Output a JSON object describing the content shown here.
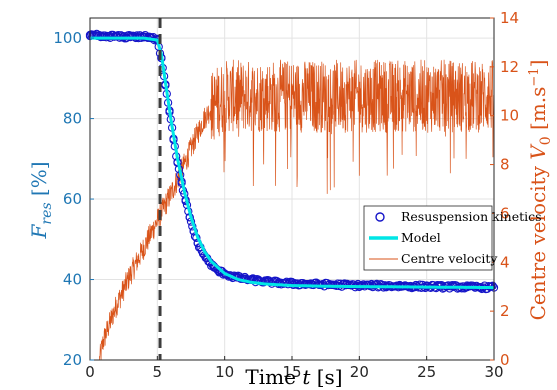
{
  "chart_data": {
    "type": "line",
    "xlabel": "Time t [s]",
    "ylabel_left": "F_res [%]",
    "ylabel_right": "Centre velocity V_0 [m.s^-1]",
    "xlim": [
      0,
      30
    ],
    "ylim_left": [
      20,
      105
    ],
    "ylim_right": [
      0,
      14
    ],
    "x_ticks": [
      "0",
      "5",
      "10",
      "15",
      "20",
      "25",
      "30"
    ],
    "y_left_ticks": [
      "20",
      "40",
      "60",
      "80",
      "100"
    ],
    "y_right_ticks": [
      "0",
      "2",
      "4",
      "6",
      "8",
      "10",
      "12",
      "14"
    ],
    "grid": true,
    "legend_position": "center-right",
    "vline": {
      "x": 5.2,
      "style": "dashed",
      "color": "#3d3d3d"
    },
    "colors": {
      "left_axis": "#1f77b4",
      "right_axis": "#d95319",
      "markers": "#1515c8",
      "model": "#00e6e6",
      "velocity": "#d95319"
    },
    "series": [
      {
        "name": "Resuspension kinetics",
        "axis": "left",
        "style": "markers",
        "x": [
          0.0,
          0.5,
          1.0,
          1.5,
          2.0,
          2.5,
          3.0,
          3.5,
          4.0,
          4.5,
          5.0,
          5.3,
          5.6,
          5.9,
          6.2,
          6.5,
          6.8,
          7.1,
          7.4,
          7.7,
          8.0,
          8.4,
          8.8,
          9.2,
          9.6,
          10.0,
          10.5,
          11.0,
          11.5,
          12.0,
          12.5,
          13.0,
          14.0,
          15.0,
          16.0,
          17.0,
          18.0,
          19.0,
          20.0,
          21.0,
          22.0,
          23.0,
          24.0,
          25.0,
          26.0,
          27.0,
          28.0,
          29.0,
          30.0
        ],
        "values": [
          100.5,
          100.6,
          100.3,
          100.5,
          100.4,
          100.2,
          100.6,
          100.3,
          100.4,
          100.0,
          99.8,
          95.0,
          88.5,
          82.0,
          75.0,
          69.0,
          64.0,
          59.5,
          55.5,
          52.0,
          49.0,
          46.5,
          44.5,
          43.0,
          42.0,
          41.5,
          40.8,
          40.5,
          40.2,
          39.9,
          39.7,
          39.5,
          39.2,
          39.0,
          38.9,
          38.8,
          38.7,
          38.6,
          38.5,
          38.5,
          38.4,
          38.4,
          38.3,
          38.3,
          38.2,
          38.2,
          38.1,
          38.1,
          38.0
        ]
      },
      {
        "name": "Model",
        "axis": "left",
        "style": "line",
        "x": [
          0.0,
          4.0,
          5.0,
          5.3,
          5.6,
          6.0,
          6.5,
          7.0,
          7.5,
          8.0,
          8.5,
          9.0,
          10.0,
          11.0,
          12.0,
          13.0,
          15.0,
          18.0,
          22.0,
          26.0,
          30.0
        ],
        "values": [
          100.0,
          100.0,
          99.5,
          96.0,
          89.0,
          80.0,
          70.0,
          62.0,
          55.5,
          50.5,
          47.0,
          44.5,
          41.5,
          40.0,
          39.3,
          38.9,
          38.5,
          38.3,
          38.2,
          38.1,
          38.0
        ]
      },
      {
        "name": "Centre velocity",
        "axis": "right",
        "style": "line",
        "x": [
          0.7,
          1.0,
          2.0,
          3.0,
          4.0,
          5.0,
          6.0,
          7.0,
          8.0,
          8.5,
          9.0,
          9.5,
          10.0,
          12.0,
          15.0,
          20.0,
          25.0,
          30.0
        ],
        "values": [
          0.0,
          0.8,
          2.3,
          3.5,
          4.6,
          5.7,
          6.8,
          8.0,
          9.3,
          9.9,
          10.3,
          10.6,
          10.8,
          10.8,
          10.8,
          10.8,
          10.8,
          10.8
        ]
      }
    ]
  }
}
